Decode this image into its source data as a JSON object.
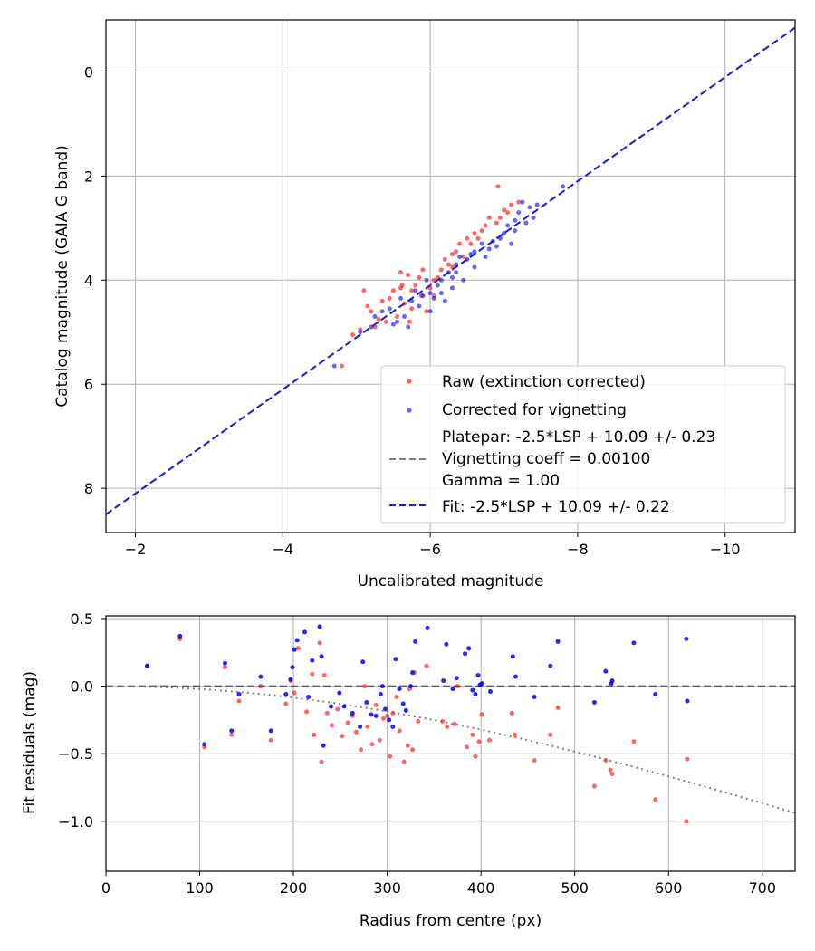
{
  "chart_data": [
    {
      "type": "scatter",
      "xlabel": "Uncalibrated magnitude",
      "ylabel": "Catalog magnitude (GAIA G band)",
      "xlim": [
        -1.6,
        -10.95
      ],
      "ylim": [
        8.85,
        -1.0
      ],
      "xticks": [
        -2,
        -4,
        -6,
        -8,
        -10
      ],
      "xtick_labels": [
        "−2",
        "−4",
        "−6",
        "−8",
        "−10"
      ],
      "yticks": [
        0,
        2,
        4,
        6,
        8
      ],
      "ytick_labels": [
        "0",
        "2",
        "4",
        "6",
        "8"
      ],
      "grid": true,
      "legend_position": "lower-right",
      "legend": {
        "raw": "Raw (extinction corrected)",
        "corrected": "Corrected for vignetting",
        "platepar_lines": [
          "Platepar: -2.5*LSP + 10.09 +/- 0.23",
          "Vignetting coeff = 0.00100",
          "Gamma = 1.00"
        ],
        "fit": "Fit: -2.5*LSP + 10.09 +/- 0.22"
      },
      "colors": {
        "raw": "#ff0000",
        "corrected": "#0000ff",
        "platepar": "#808080",
        "fit": "#2222cc"
      },
      "lines": [
        {
          "name": "platepar",
          "style": "dashed",
          "x": [
            -1.6,
            -10.95
          ],
          "y": [
            8.5,
            -0.85
          ]
        },
        {
          "name": "fit",
          "style": "dashed",
          "x": [
            -1.6,
            -10.95
          ],
          "y": [
            8.5,
            -0.85
          ]
        }
      ],
      "series": [
        {
          "name": "Raw (extinction corrected)",
          "points": [
            [
              -4.8,
              5.65
            ],
            [
              -4.95,
              5.05
            ],
            [
              -5.05,
              4.95
            ],
            [
              -5.1,
              4.2
            ],
            [
              -5.15,
              4.5
            ],
            [
              -5.2,
              4.6
            ],
            [
              -5.25,
              4.9
            ],
            [
              -5.3,
              4.75
            ],
            [
              -5.35,
              4.4
            ],
            [
              -5.4,
              4.8
            ],
            [
              -5.45,
              4.35
            ],
            [
              -5.5,
              4.2
            ],
            [
              -5.55,
              4.7
            ],
            [
              -5.6,
              3.85
            ],
            [
              -5.62,
              4.1
            ],
            [
              -5.65,
              4.45
            ],
            [
              -5.7,
              3.9
            ],
            [
              -5.72,
              4.8
            ],
            [
              -5.75,
              4.2
            ],
            [
              -5.8,
              4.1
            ],
            [
              -5.85,
              3.95
            ],
            [
              -5.88,
              4.3
            ],
            [
              -5.9,
              3.8
            ],
            [
              -5.95,
              4.6
            ],
            [
              -6.0,
              4.15
            ],
            [
              -6.05,
              4.0
            ],
            [
              -6.1,
              3.95
            ],
            [
              -6.15,
              3.8
            ],
            [
              -6.2,
              3.6
            ],
            [
              -6.25,
              3.7
            ],
            [
              -6.3,
              3.5
            ],
            [
              -6.35,
              3.45
            ],
            [
              -6.4,
              3.3
            ],
            [
              -6.45,
              3.55
            ],
            [
              -6.5,
              3.2
            ],
            [
              -6.55,
              3.3
            ],
            [
              -6.6,
              3.1
            ],
            [
              -6.65,
              3.2
            ],
            [
              -6.7,
              3.05
            ],
            [
              -6.75,
              2.95
            ],
            [
              -6.8,
              2.8
            ],
            [
              -6.9,
              2.9
            ],
            [
              -6.95,
              2.8
            ],
            [
              -7.0,
              2.65
            ],
            [
              -7.05,
              2.7
            ],
            [
              -7.1,
              2.55
            ],
            [
              -7.2,
              2.5
            ],
            [
              -6.92,
              2.2
            ],
            [
              -5.6,
              4.15
            ],
            [
              -5.75,
              4.55
            ],
            [
              -6.05,
              4.3
            ],
            [
              -6.3,
              3.75
            ]
          ]
        },
        {
          "name": "Corrected for vignetting",
          "points": [
            [
              -4.7,
              5.65
            ],
            [
              -5.05,
              5.0
            ],
            [
              -5.2,
              4.9
            ],
            [
              -5.25,
              4.7
            ],
            [
              -5.35,
              4.6
            ],
            [
              -5.45,
              4.55
            ],
            [
              -5.55,
              4.8
            ],
            [
              -5.6,
              4.35
            ],
            [
              -5.65,
              4.7
            ],
            [
              -5.7,
              4.9
            ],
            [
              -5.75,
              4.4
            ],
            [
              -5.8,
              4.2
            ],
            [
              -5.85,
              4.5
            ],
            [
              -5.9,
              4.3
            ],
            [
              -5.95,
              4.0
            ],
            [
              -6.0,
              4.25
            ],
            [
              -6.05,
              4.35
            ],
            [
              -6.1,
              4.1
            ],
            [
              -6.15,
              4.0
            ],
            [
              -6.2,
              4.4
            ],
            [
              -6.25,
              3.85
            ],
            [
              -6.3,
              3.95
            ],
            [
              -6.35,
              3.7
            ],
            [
              -6.45,
              4.0
            ],
            [
              -6.5,
              3.6
            ],
            [
              -6.55,
              3.5
            ],
            [
              -6.6,
              3.45
            ],
            [
              -6.7,
              3.3
            ],
            [
              -6.75,
              3.55
            ],
            [
              -6.8,
              3.4
            ],
            [
              -6.85,
              3.25
            ],
            [
              -6.95,
              3.2
            ],
            [
              -7.0,
              3.1
            ],
            [
              -7.05,
              2.95
            ],
            [
              -7.1,
              3.3
            ],
            [
              -7.15,
              2.85
            ],
            [
              -7.2,
              2.7
            ],
            [
              -7.25,
              2.5
            ],
            [
              -7.3,
              2.9
            ],
            [
              -7.35,
              2.6
            ],
            [
              -7.45,
              2.55
            ],
            [
              -7.8,
              2.2
            ],
            [
              -7.4,
              2.8
            ],
            [
              -7.15,
              3.05
            ],
            [
              -6.4,
              3.55
            ],
            [
              -6.6,
              3.75
            ],
            [
              -6.9,
              3.35
            ],
            [
              -6.0,
              4.6
            ],
            [
              -5.5,
              4.85
            ],
            [
              -6.15,
              4.25
            ],
            [
              -6.3,
              4.15
            ],
            [
              -6.35,
              3.85
            ]
          ]
        }
      ]
    },
    {
      "type": "scatter",
      "xlabel": "Radius from centre (px)",
      "ylabel": "Fit residuals (mag)",
      "xlim": [
        0,
        735
      ],
      "ylim": [
        -1.37,
        0.52
      ],
      "xticks": [
        0,
        100,
        200,
        300,
        400,
        500,
        600,
        700
      ],
      "xtick_labels": [
        "0",
        "100",
        "200",
        "300",
        "400",
        "500",
        "600",
        "700"
      ],
      "yticks": [
        0.5,
        0.0,
        -0.5,
        -1.0
      ],
      "ytick_labels": [
        "0.5",
        "0.0",
        "−0.5",
        "−1.0"
      ],
      "grid": true,
      "lines": [
        {
          "name": "zero",
          "style": "dashed",
          "y": 0.0
        },
        {
          "name": "vignetting-model",
          "style": "dotted",
          "coeff": 0.001,
          "gamma": 1.0
        }
      ],
      "series": [
        {
          "name": "raw",
          "points": [
            [
              44,
              0.15
            ],
            [
              79,
              0.35
            ],
            [
              105,
              -0.45
            ],
            [
              127,
              0.14
            ],
            [
              134,
              -0.36
            ],
            [
              142,
              -0.11
            ],
            [
              165,
              0.0
            ],
            [
              176,
              -0.4
            ],
            [
              192,
              -0.13
            ],
            [
              197,
              0.04
            ],
            [
              201,
              -0.05
            ],
            [
              205,
              0.28
            ],
            [
              214,
              -0.19
            ],
            [
              220,
              0.09
            ],
            [
              222,
              -0.36
            ],
            [
              228,
              0.32
            ],
            [
              230,
              -0.56
            ],
            [
              233,
              0.08
            ],
            [
              236,
              -0.2
            ],
            [
              241,
              -0.29
            ],
            [
              247,
              -0.17
            ],
            [
              252,
              -0.37
            ],
            [
              258,
              -0.27
            ],
            [
              263,
              -0.22
            ],
            [
              267,
              -0.34
            ],
            [
              272,
              -0.47
            ],
            [
              276,
              0.0
            ],
            [
              279,
              -0.3
            ],
            [
              284,
              -0.43
            ],
            [
              288,
              -0.14
            ],
            [
              292,
              -0.4
            ],
            [
              296,
              -0.24
            ],
            [
              300,
              -0.22
            ],
            [
              303,
              -0.52
            ],
            [
              306,
              -0.2
            ],
            [
              310,
              -0.08
            ],
            [
              313,
              -0.33
            ],
            [
              318,
              -0.56
            ],
            [
              322,
              -0.44
            ],
            [
              324,
              -0.02
            ],
            [
              327,
              -0.47
            ],
            [
              329,
              0.1
            ],
            [
              333,
              -0.26
            ],
            [
              342,
              0.15
            ],
            [
              359,
              -0.26
            ],
            [
              364,
              -0.3
            ],
            [
              372,
              -0.28
            ],
            [
              375,
              0.0
            ],
            [
              385,
              -0.45
            ],
            [
              391,
              -0.36
            ],
            [
              394,
              -0.52
            ],
            [
              398,
              -0.41
            ],
            [
              401,
              -0.21
            ],
            [
              409,
              -0.4
            ],
            [
              433,
              -0.2
            ],
            [
              436,
              -0.36
            ],
            [
              457,
              -0.55
            ],
            [
              474,
              -0.36
            ],
            [
              482,
              -0.16
            ],
            [
              521,
              -0.74
            ],
            [
              533,
              -0.55
            ],
            [
              538,
              -0.62
            ],
            [
              540,
              -0.65
            ],
            [
              563,
              -0.41
            ],
            [
              586,
              -0.84
            ],
            [
              620,
              -0.54
            ],
            [
              619,
              -1.0
            ]
          ]
        },
        {
          "name": "corrected",
          "points": [
            [
              44,
              0.15
            ],
            [
              79,
              0.37
            ],
            [
              105,
              -0.43
            ],
            [
              127,
              0.17
            ],
            [
              134,
              -0.33
            ],
            [
              142,
              -0.06
            ],
            [
              165,
              0.07
            ],
            [
              176,
              -0.33
            ],
            [
              192,
              -0.06
            ],
            [
              197,
              0.05
            ],
            [
              199,
              0.14
            ],
            [
              201,
              0.27
            ],
            [
              204,
              0.34
            ],
            [
              212,
              0.4
            ],
            [
              216,
              -0.08
            ],
            [
              220,
              0.19
            ],
            [
              228,
              0.44
            ],
            [
              230,
              0.22
            ],
            [
              232,
              -0.44
            ],
            [
              240,
              -0.15
            ],
            [
              249,
              -0.05
            ],
            [
              254,
              -0.15
            ],
            [
              263,
              -0.2
            ],
            [
              271,
              -0.3
            ],
            [
              274,
              0.18
            ],
            [
              278,
              -0.12
            ],
            [
              283,
              -0.21
            ],
            [
              288,
              -0.22
            ],
            [
              293,
              -0.06
            ],
            [
              295,
              0.0
            ],
            [
              298,
              -0.17
            ],
            [
              302,
              -0.25
            ],
            [
              306,
              -0.3
            ],
            [
              309,
              0.2
            ],
            [
              313,
              -0.02
            ],
            [
              317,
              -0.13
            ],
            [
              320,
              -0.18
            ],
            [
              325,
              0.0
            ],
            [
              327,
              0.1
            ],
            [
              330,
              0.33
            ],
            [
              343,
              0.43
            ],
            [
              360,
              0.04
            ],
            [
              363,
              0.31
            ],
            [
              370,
              -0.02
            ],
            [
              374,
              0.06
            ],
            [
              383,
              0.24
            ],
            [
              387,
              0.28
            ],
            [
              391,
              -0.03
            ],
            [
              394,
              -0.06
            ],
            [
              397,
              0.08
            ],
            [
              399,
              0.01
            ],
            [
              401,
              0.02
            ],
            [
              410,
              -0.04
            ],
            [
              434,
              0.22
            ],
            [
              437,
              0.07
            ],
            [
              457,
              -0.08
            ],
            [
              474,
              0.15
            ],
            [
              482,
              0.33
            ],
            [
              521,
              -0.12
            ],
            [
              533,
              0.11
            ],
            [
              539,
              0.02
            ],
            [
              540,
              0.04
            ],
            [
              563,
              0.32
            ],
            [
              586,
              -0.06
            ],
            [
              619,
              0.35
            ],
            [
              620,
              -0.11
            ]
          ]
        }
      ]
    }
  ]
}
